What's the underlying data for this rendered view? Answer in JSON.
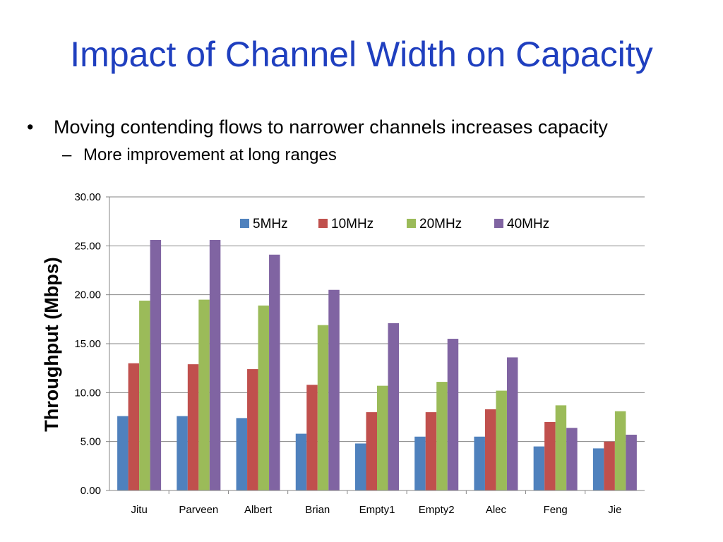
{
  "slide": {
    "title": "Impact of Channel Width on Capacity",
    "bullet_mark": "•",
    "bullet": "Moving contending flows to narrower channels increases capacity",
    "sub_bullet_mark": "–",
    "sub_bullet": "More improvement at long ranges"
  },
  "chart_data": {
    "type": "bar",
    "title": "",
    "xlabel": "",
    "ylabel": "Throughput (Mbps)",
    "ylim": [
      0,
      30
    ],
    "yticks": [
      "0.00",
      "5.00",
      "10.00",
      "15.00",
      "20.00",
      "25.00",
      "30.00"
    ],
    "grid": true,
    "legend": "top-center",
    "categories": [
      "Jitu",
      "Parveen",
      "Albert",
      "Brian",
      "Empty1",
      "Empty2",
      "Alec",
      "Feng",
      "Jie"
    ],
    "series": [
      {
        "name": "5MHz",
        "color": "#4f81bd",
        "values": [
          7.6,
          7.6,
          7.4,
          5.8,
          4.8,
          5.5,
          5.5,
          4.5,
          4.3
        ]
      },
      {
        "name": "10MHz",
        "color": "#c0504d",
        "values": [
          13.0,
          12.9,
          12.4,
          10.8,
          8.0,
          8.0,
          8.3,
          7.0,
          5.0
        ]
      },
      {
        "name": "20MHz",
        "color": "#9bbb59",
        "values": [
          19.4,
          19.5,
          18.9,
          16.9,
          10.7,
          11.1,
          10.2,
          8.7,
          8.1
        ]
      },
      {
        "name": "40MHz",
        "color": "#8064a2",
        "values": [
          25.6,
          25.6,
          24.1,
          20.5,
          17.1,
          15.5,
          13.6,
          6.4,
          5.7
        ]
      }
    ]
  }
}
